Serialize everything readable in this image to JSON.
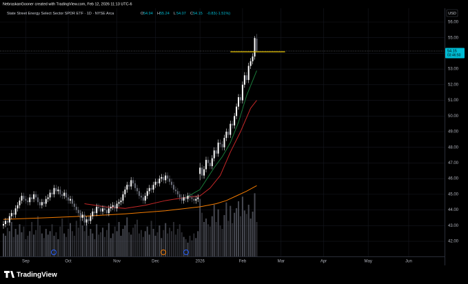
{
  "header": "NebraskanGooner created with TradingView.com, Feb 12, 2026 11:13 UTC-6",
  "footer": "TradingView",
  "chart_data": {
    "type": "candlestick",
    "title": "State Street Energy Select Sector SPDR ETF · 1D · NYSE Arca",
    "legend_labels": [
      "O",
      "H",
      "L",
      "C"
    ],
    "change": "-0.83",
    "change_pct": "(-1.51%)",
    "currency": "USD",
    "countdown": "03:46:50",
    "up_color": "#ffffff",
    "down_color": "#6a6d78",
    "volume_color": "#5d606b",
    "open": [
      43.0,
      43.1,
      43.3,
      43.2,
      43.6,
      43.8,
      43.7,
      44.1,
      44.3,
      44.6,
      44.9,
      44.7,
      44.6,
      44.5,
      44.8,
      44.7,
      45.0,
      44.8,
      44.5,
      44.3,
      44.5,
      44.4,
      44.7,
      44.8,
      45.1,
      45.0,
      45.4,
      45.2,
      45.3,
      45.0,
      44.9,
      45.1,
      44.8,
      44.6,
      44.7,
      44.4,
      44.2,
      44.0,
      43.8,
      43.5,
      43.7,
      43.2,
      43.4,
      43.3,
      43.6,
      43.9,
      43.8,
      44.2,
      44.1,
      43.9,
      44.1,
      44.0,
      43.8,
      44.1,
      44.2,
      44.3,
      44.1,
      44.4,
      44.5,
      44.6,
      45.0,
      45.3,
      45.6,
      45.5,
      45.9,
      45.7,
      45.4,
      45.2,
      44.9,
      44.8,
      44.6,
      44.9,
      45.2,
      45.4,
      45.3,
      45.6,
      45.8,
      45.7,
      46.0,
      46.1,
      45.9,
      46.2,
      46.0,
      45.8,
      45.6,
      45.3,
      45.2,
      45.0,
      44.8,
      44.6,
      44.8,
      44.7,
      44.9,
      44.8,
      44.7,
      44.6,
      44.7,
      46.3,
      46.7,
      46.2,
      46.6,
      47.2,
      47.0,
      46.8,
      47.3,
      47.8,
      47.6,
      48.3,
      48.2,
      48.0,
      48.6,
      49.0,
      48.8,
      49.5,
      49.4,
      50.0,
      50.6,
      51.2,
      51.0,
      52.0,
      52.6,
      52.3,
      53.2,
      53.5,
      53.8,
      54.94
    ],
    "high": [
      43.3,
      43.5,
      43.5,
      43.8,
      44.0,
      44.0,
      44.3,
      44.5,
      44.8,
      45.1,
      45.1,
      44.9,
      44.8,
      45.0,
      45.0,
      45.2,
      45.2,
      45.0,
      44.7,
      44.7,
      44.7,
      44.9,
      45.0,
      45.3,
      45.3,
      45.6,
      45.6,
      45.5,
      45.5,
      45.2,
      45.3,
      45.3,
      45.0,
      44.9,
      44.9,
      44.6,
      44.4,
      44.2,
      44.0,
      43.9,
      43.9,
      43.6,
      43.6,
      43.8,
      44.1,
      44.1,
      44.4,
      44.4,
      44.3,
      44.3,
      44.3,
      44.2,
      44.3,
      44.4,
      44.5,
      44.5,
      44.6,
      44.7,
      44.8,
      45.2,
      45.5,
      45.8,
      45.8,
      46.1,
      46.1,
      45.9,
      45.6,
      45.4,
      45.1,
      45.0,
      45.1,
      45.4,
      45.6,
      45.6,
      45.8,
      46.0,
      46.0,
      46.2,
      46.3,
      46.3,
      46.4,
      46.4,
      46.2,
      46.0,
      45.8,
      45.5,
      45.4,
      45.2,
      45.0,
      45.0,
      45.0,
      45.1,
      45.1,
      45.0,
      44.9,
      44.9,
      45.0,
      47.0,
      46.9,
      46.8,
      47.4,
      47.4,
      47.2,
      47.5,
      48.0,
      48.0,
      48.5,
      48.5,
      48.4,
      48.8,
      49.2,
      49.2,
      49.7,
      49.7,
      50.2,
      50.8,
      51.4,
      51.4,
      52.2,
      52.8,
      52.8,
      53.4,
      53.7,
      54.0,
      55.1,
      55.24
    ],
    "low": [
      42.8,
      42.9,
      43.0,
      43.0,
      43.4,
      43.5,
      43.5,
      43.9,
      44.1,
      44.4,
      44.5,
      44.4,
      44.3,
      44.3,
      44.5,
      44.5,
      44.6,
      44.3,
      44.1,
      44.1,
      44.2,
      44.2,
      44.5,
      44.6,
      44.8,
      44.8,
      45.0,
      45.0,
      44.8,
      44.7,
      44.7,
      44.6,
      44.4,
      44.4,
      44.2,
      44.0,
      43.8,
      43.6,
      43.3,
      43.3,
      43.0,
      43.0,
      43.1,
      43.1,
      43.4,
      43.6,
      43.6,
      43.9,
      43.7,
      43.7,
      43.8,
      43.6,
      43.6,
      43.9,
      44.0,
      43.9,
      43.9,
      44.2,
      44.3,
      44.4,
      44.8,
      45.1,
      45.3,
      45.3,
      45.5,
      45.2,
      45.0,
      44.7,
      44.6,
      44.4,
      44.4,
      44.7,
      45.0,
      45.1,
      45.1,
      45.4,
      45.5,
      45.5,
      45.8,
      45.7,
      45.7,
      45.8,
      45.6,
      45.4,
      45.1,
      45.0,
      44.8,
      44.6,
      44.4,
      44.4,
      44.5,
      44.5,
      44.6,
      44.5,
      44.4,
      44.4,
      44.5,
      45.9,
      46.0,
      46.0,
      46.4,
      46.8,
      46.6,
      46.6,
      47.1,
      47.4,
      47.4,
      48.0,
      47.8,
      47.8,
      48.4,
      48.6,
      48.6,
      49.2,
      49.2,
      49.8,
      50.4,
      50.8,
      50.8,
      51.8,
      52.1,
      52.1,
      53.0,
      53.3,
      53.6,
      54.07
    ],
    "close": [
      43.1,
      43.3,
      43.2,
      43.6,
      43.8,
      43.7,
      44.1,
      44.3,
      44.6,
      44.9,
      44.7,
      44.6,
      44.5,
      44.8,
      44.7,
      45.0,
      44.8,
      44.5,
      44.3,
      44.5,
      44.4,
      44.7,
      44.8,
      45.1,
      45.0,
      45.4,
      45.2,
      45.3,
      45.0,
      44.9,
      45.1,
      44.8,
      44.6,
      44.7,
      44.4,
      44.2,
      44.0,
      43.8,
      43.5,
      43.7,
      43.2,
      43.4,
      43.3,
      43.6,
      43.9,
      43.8,
      44.2,
      44.1,
      43.9,
      44.1,
      44.0,
      43.8,
      44.1,
      44.2,
      44.3,
      44.1,
      44.4,
      44.5,
      44.6,
      45.0,
      45.3,
      45.6,
      45.5,
      45.9,
      45.7,
      45.4,
      45.2,
      44.9,
      44.8,
      44.6,
      44.9,
      45.2,
      45.4,
      45.3,
      45.6,
      45.8,
      45.7,
      46.0,
      46.1,
      45.9,
      46.2,
      46.0,
      45.8,
      45.6,
      45.3,
      45.2,
      45.0,
      44.8,
      44.6,
      44.8,
      44.7,
      44.9,
      44.8,
      44.7,
      44.6,
      44.7,
      44.8,
      46.7,
      46.2,
      46.6,
      47.2,
      47.0,
      46.8,
      47.3,
      47.8,
      47.6,
      48.3,
      48.2,
      48.0,
      48.6,
      49.0,
      48.8,
      49.5,
      49.4,
      50.0,
      50.6,
      51.2,
      51.0,
      52.0,
      52.6,
      52.3,
      53.2,
      53.5,
      53.8,
      54.98,
      54.15
    ],
    "volume": [
      20,
      18,
      25,
      22,
      30,
      17,
      24,
      19,
      28,
      21,
      26,
      15,
      18,
      22,
      30,
      19,
      23,
      35,
      27,
      20,
      16,
      24,
      19,
      22,
      28,
      18,
      21,
      15,
      26,
      33,
      20,
      17,
      24,
      29,
      22,
      18,
      31,
      25,
      40,
      27,
      22,
      30,
      18,
      24,
      20,
      15,
      28,
      19,
      21,
      25,
      17,
      23,
      29,
      16,
      20,
      26,
      22,
      30,
      18,
      24,
      27,
      34,
      21,
      19,
      25,
      28,
      32,
      20,
      23,
      17,
      22,
      26,
      19,
      31,
      24,
      18,
      21,
      27,
      16,
      23,
      29,
      20,
      25,
      22,
      30,
      19,
      24,
      28,
      21,
      17,
      15,
      12,
      18,
      14,
      20,
      16,
      22,
      50,
      38,
      30,
      33,
      28,
      26,
      35,
      45,
      30,
      41,
      27,
      24,
      36,
      47,
      31,
      44,
      29,
      38,
      42,
      48,
      35,
      52,
      40,
      37,
      45,
      33,
      39,
      55,
      30
    ],
    "vlim": [
      0,
      60
    ],
    "series": [
      {
        "color": "#f57c00",
        "x": [
          0,
          20,
          40,
          60,
          80,
          97,
          105,
          110,
          115,
          120,
          125
        ],
        "values": [
          43.4,
          43.5,
          43.6,
          43.75,
          43.95,
          44.2,
          44.4,
          44.6,
          44.9,
          45.2,
          45.55
        ]
      },
      {
        "color": "#c62828",
        "x": [
          40,
          50,
          60,
          70,
          80,
          90,
          97,
          102,
          107,
          112,
          117,
          122,
          125
        ],
        "values": [
          44.4,
          44.2,
          44.1,
          44.3,
          44.6,
          44.8,
          44.9,
          45.4,
          46.2,
          47.7,
          49.0,
          50.5,
          51.0
        ]
      },
      {
        "color": "#1b7a3a",
        "x": [
          90,
          97,
          100,
          104,
          108,
          112,
          116,
          120,
          125
        ],
        "values": [
          44.8,
          45.3,
          45.9,
          46.7,
          47.4,
          48.3,
          49.6,
          51.3,
          52.9
        ]
      }
    ],
    "hlines": [
      {
        "value": 54.1,
        "x": [
          112,
          139
        ],
        "color": "#e6c200"
      }
    ],
    "xlim": [
      -1.7,
      217.7
    ],
    "xticks": [
      {
        "value": 11,
        "label": "Sep"
      },
      {
        "value": 32,
        "label": "Oct"
      },
      {
        "value": 56,
        "label": "Nov"
      },
      {
        "value": 75,
        "label": "Dec"
      },
      {
        "value": 97,
        "label": "2026"
      },
      {
        "value": 118,
        "label": "Feb"
      },
      {
        "value": 137,
        "label": "Mar"
      },
      {
        "value": 158,
        "label": "Apr"
      },
      {
        "value": 180,
        "label": "May"
      },
      {
        "value": 200,
        "label": "Jun"
      }
    ],
    "ylim": [
      40.46,
      56.88
    ],
    "yticks": [
      {
        "value": 42,
        "label": "42.00"
      },
      {
        "value": 43,
        "label": "43.00"
      },
      {
        "value": 44,
        "label": "44.00"
      },
      {
        "value": 45,
        "label": "45.00"
      },
      {
        "value": 46,
        "label": "46.00"
      },
      {
        "value": 47,
        "label": "47.00"
      },
      {
        "value": 48,
        "label": "48.00"
      },
      {
        "value": 49,
        "label": "49.00"
      },
      {
        "value": 50,
        "label": "50.00"
      },
      {
        "value": 51,
        "label": "51.00"
      },
      {
        "value": 52,
        "label": "52.00"
      },
      {
        "value": 53,
        "label": "53.00"
      },
      {
        "value": 54,
        "label": "54.00"
      },
      {
        "value": 55,
        "label": "55.00"
      },
      {
        "value": 56,
        "label": "56.00"
      }
    ],
    "grid": true
  }
}
